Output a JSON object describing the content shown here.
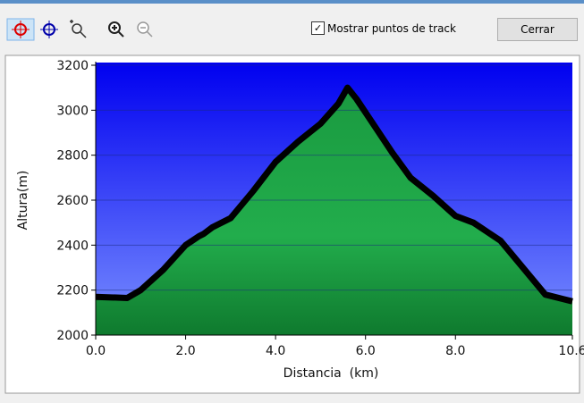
{
  "toolbar": {
    "checkbox_label": "Mostrar puntos de track",
    "close_button": "Cerrar"
  },
  "chart_data": {
    "type": "area",
    "xlabel": "Distancia  (km)",
    "ylabel": "Altura(m)",
    "x": [
      0.0,
      0.7,
      1.0,
      1.5,
      2.0,
      2.3,
      2.4,
      2.6,
      3.0,
      3.5,
      4.0,
      4.5,
      5.0,
      5.4,
      5.6,
      5.8,
      6.2,
      6.6,
      7.0,
      7.5,
      8.0,
      8.4,
      8.7,
      9.0,
      9.5,
      10.0,
      10.4,
      10.6
    ],
    "values": [
      2170,
      2165,
      2200,
      2290,
      2400,
      2440,
      2450,
      2480,
      2520,
      2640,
      2770,
      2860,
      2940,
      3030,
      3100,
      3050,
      2930,
      2810,
      2700,
      2620,
      2530,
      2500,
      2460,
      2420,
      2300,
      2180,
      2160,
      2150
    ],
    "xlim": [
      0,
      10.6
    ],
    "ylim": [
      2000,
      3200
    ],
    "xticks": [
      {
        "value": 0,
        "label": "0.0"
      },
      {
        "value": 2,
        "label": "2.0"
      },
      {
        "value": 4,
        "label": "4.0"
      },
      {
        "value": 6,
        "label": "6.0"
      },
      {
        "value": 8,
        "label": "8.0"
      },
      10.6
    ],
    "yticks": [
      2000,
      2200,
      2400,
      2600,
      2800,
      3000,
      3200
    ],
    "grid": true,
    "line_color": "#000000",
    "fill_color": "#22a84a"
  }
}
